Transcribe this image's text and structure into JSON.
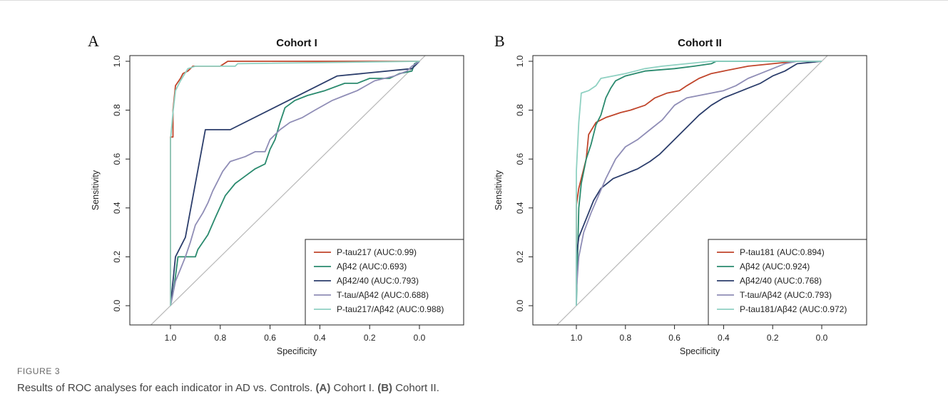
{
  "figure": {
    "label": "FIGURE 3",
    "caption_intro": "Results of ROC analyses for each indicator in AD vs. Controls. ",
    "caption_a_tag": "(A)",
    "caption_a_text": " Cohort I. ",
    "caption_b_tag": "(B)",
    "caption_b_text": " Cohort II."
  },
  "chart_data": [
    {
      "type": "line",
      "panel": "A",
      "title": "Cohort I",
      "xlabel": "Specificity",
      "ylabel": "Sensitivity",
      "x_reversed": true,
      "xlim": [
        1.0,
        0.0
      ],
      "ylim": [
        0.0,
        1.0
      ],
      "xticks": [
        "1.0",
        "0.8",
        "0.6",
        "0.4",
        "0.2",
        "0.0"
      ],
      "yticks": [
        "0.0",
        "0.2",
        "0.4",
        "0.6",
        "0.8",
        "1.0"
      ],
      "legend_position": "bottom-right",
      "reference_line": true,
      "series": [
        {
          "name": "P-tau217 (AUC:0.99)",
          "color": "#c0452b",
          "points": [
            [
              1,
              0
            ],
            [
              1,
              0.69
            ],
            [
              0.99,
              0.69
            ],
            [
              0.99,
              0.8
            ],
            [
              0.98,
              0.9
            ],
            [
              0.96,
              0.93
            ],
            [
              0.95,
              0.95
            ],
            [
              0.93,
              0.96
            ],
            [
              0.91,
              0.98
            ],
            [
              0.85,
              0.98
            ],
            [
              0.8,
              0.98
            ],
            [
              0.77,
              1.0
            ],
            [
              0.0,
              1.0
            ]
          ]
        },
        {
          "name": "Aβ42 (AUC:0.693)",
          "color": "#2a8a6e",
          "points": [
            [
              1,
              0
            ],
            [
              0.99,
              0.05
            ],
            [
              0.98,
              0.12
            ],
            [
              0.97,
              0.2
            ],
            [
              0.93,
              0.2
            ],
            [
              0.9,
              0.2
            ],
            [
              0.89,
              0.23
            ],
            [
              0.85,
              0.29
            ],
            [
              0.82,
              0.36
            ],
            [
              0.78,
              0.45
            ],
            [
              0.74,
              0.5
            ],
            [
              0.7,
              0.53
            ],
            [
              0.66,
              0.56
            ],
            [
              0.62,
              0.58
            ],
            [
              0.6,
              0.64
            ],
            [
              0.58,
              0.68
            ],
            [
              0.56,
              0.75
            ],
            [
              0.54,
              0.81
            ],
            [
              0.5,
              0.84
            ],
            [
              0.45,
              0.86
            ],
            [
              0.38,
              0.88
            ],
            [
              0.3,
              0.91
            ],
            [
              0.25,
              0.91
            ],
            [
              0.2,
              0.93
            ],
            [
              0.12,
              0.93
            ],
            [
              0.08,
              0.95
            ],
            [
              0.03,
              0.96
            ],
            [
              0.02,
              0.99
            ],
            [
              0,
              1
            ]
          ]
        },
        {
          "name": "Aβ42/40 (AUC:0.793)",
          "color": "#2b3d6b",
          "points": [
            [
              1,
              0
            ],
            [
              0.98,
              0.2
            ],
            [
              0.94,
              0.28
            ],
            [
              0.86,
              0.72
            ],
            [
              0.76,
              0.72
            ],
            [
              0.33,
              0.94
            ],
            [
              0.03,
              0.97
            ],
            [
              0,
              1
            ]
          ]
        },
        {
          "name": "T-tau/Aβ42 (AUC:0.688)",
          "color": "#8f8db6",
          "points": [
            [
              1,
              0
            ],
            [
              0.99,
              0.05
            ],
            [
              0.98,
              0.1
            ],
            [
              0.96,
              0.15
            ],
            [
              0.94,
              0.2
            ],
            [
              0.92,
              0.26
            ],
            [
              0.9,
              0.33
            ],
            [
              0.87,
              0.38
            ],
            [
              0.85,
              0.42
            ],
            [
              0.83,
              0.47
            ],
            [
              0.81,
              0.51
            ],
            [
              0.79,
              0.55
            ],
            [
              0.76,
              0.59
            ],
            [
              0.7,
              0.61
            ],
            [
              0.66,
              0.63
            ],
            [
              0.62,
              0.63
            ],
            [
              0.6,
              0.68
            ],
            [
              0.56,
              0.72
            ],
            [
              0.52,
              0.75
            ],
            [
              0.47,
              0.77
            ],
            [
              0.42,
              0.8
            ],
            [
              0.35,
              0.84
            ],
            [
              0.3,
              0.86
            ],
            [
              0.25,
              0.88
            ],
            [
              0.18,
              0.92
            ],
            [
              0.1,
              0.94
            ],
            [
              0.05,
              0.96
            ],
            [
              0.03,
              0.98
            ],
            [
              0,
              1
            ]
          ]
        },
        {
          "name": "P-tau217/Aβ42 (AUC:0.988)",
          "color": "#8fd1c2",
          "points": [
            [
              1,
              0
            ],
            [
              1,
              0.68
            ],
            [
              0.99,
              0.79
            ],
            [
              0.98,
              0.88
            ],
            [
              0.96,
              0.92
            ],
            [
              0.93,
              0.97
            ],
            [
              0.9,
              0.98
            ],
            [
              0.74,
              0.98
            ],
            [
              0.73,
              0.99
            ],
            [
              0.0,
              1.0
            ]
          ]
        }
      ]
    },
    {
      "type": "line",
      "panel": "B",
      "title": "Cohort II",
      "xlabel": "Specificity",
      "ylabel": "Sensitivity",
      "x_reversed": true,
      "xlim": [
        1.0,
        0.0
      ],
      "ylim": [
        0.0,
        1.0
      ],
      "xticks": [
        "1.0",
        "0.8",
        "0.6",
        "0.4",
        "0.2",
        "0.0"
      ],
      "yticks": [
        "0.0",
        "0.2",
        "0.4",
        "0.6",
        "0.8",
        "1.0"
      ],
      "legend_position": "bottom-right",
      "reference_line": true,
      "series": [
        {
          "name": "P-tau181 (AUC:0.894)",
          "color": "#c0452b",
          "points": [
            [
              1,
              0
            ],
            [
              1,
              0.41
            ],
            [
              0.99,
              0.48
            ],
            [
              0.98,
              0.52
            ],
            [
              0.96,
              0.6
            ],
            [
              0.95,
              0.7
            ],
            [
              0.92,
              0.75
            ],
            [
              0.88,
              0.77
            ],
            [
              0.85,
              0.78
            ],
            [
              0.82,
              0.79
            ],
            [
              0.78,
              0.8
            ],
            [
              0.72,
              0.82
            ],
            [
              0.68,
              0.85
            ],
            [
              0.63,
              0.87
            ],
            [
              0.58,
              0.88
            ],
            [
              0.55,
              0.9
            ],
            [
              0.5,
              0.93
            ],
            [
              0.45,
              0.95
            ],
            [
              0.4,
              0.96
            ],
            [
              0.3,
              0.98
            ],
            [
              0.2,
              0.99
            ],
            [
              0.1,
              1.0
            ],
            [
              0,
              1
            ]
          ]
        },
        {
          "name": "Aβ42 (AUC:0.924)",
          "color": "#2a8a6e",
          "points": [
            [
              1,
              0
            ],
            [
              0.99,
              0.4
            ],
            [
              0.98,
              0.5
            ],
            [
              0.96,
              0.6
            ],
            [
              0.94,
              0.66
            ],
            [
              0.92,
              0.74
            ],
            [
              0.9,
              0.78
            ],
            [
              0.88,
              0.85
            ],
            [
              0.86,
              0.89
            ],
            [
              0.84,
              0.92
            ],
            [
              0.8,
              0.94
            ],
            [
              0.72,
              0.96
            ],
            [
              0.6,
              0.97
            ],
            [
              0.52,
              0.98
            ],
            [
              0.45,
              0.99
            ],
            [
              0.43,
              1.0
            ],
            [
              0,
              1
            ]
          ]
        },
        {
          "name": "Aβ42/40 (AUC:0.768)",
          "color": "#2b3d6b",
          "points": [
            [
              1,
              0
            ],
            [
              1,
              0.2
            ],
            [
              0.99,
              0.28
            ],
            [
              0.97,
              0.33
            ],
            [
              0.95,
              0.38
            ],
            [
              0.93,
              0.43
            ],
            [
              0.9,
              0.48
            ],
            [
              0.85,
              0.52
            ],
            [
              0.8,
              0.54
            ],
            [
              0.75,
              0.56
            ],
            [
              0.7,
              0.59
            ],
            [
              0.66,
              0.62
            ],
            [
              0.62,
              0.66
            ],
            [
              0.58,
              0.7
            ],
            [
              0.54,
              0.74
            ],
            [
              0.5,
              0.78
            ],
            [
              0.45,
              0.82
            ],
            [
              0.4,
              0.85
            ],
            [
              0.35,
              0.87
            ],
            [
              0.3,
              0.89
            ],
            [
              0.25,
              0.91
            ],
            [
              0.2,
              0.94
            ],
            [
              0.15,
              0.96
            ],
            [
              0.1,
              0.99
            ],
            [
              0,
              1
            ]
          ]
        },
        {
          "name": "T-tau/Aβ42 (AUC:0.793)",
          "color": "#8f8db6",
          "points": [
            [
              1,
              0
            ],
            [
              1,
              0.06
            ],
            [
              0.99,
              0.2
            ],
            [
              0.97,
              0.3
            ],
            [
              0.94,
              0.38
            ],
            [
              0.91,
              0.45
            ],
            [
              0.88,
              0.52
            ],
            [
              0.84,
              0.6
            ],
            [
              0.8,
              0.65
            ],
            [
              0.75,
              0.68
            ],
            [
              0.7,
              0.72
            ],
            [
              0.65,
              0.76
            ],
            [
              0.6,
              0.82
            ],
            [
              0.55,
              0.85
            ],
            [
              0.5,
              0.86
            ],
            [
              0.45,
              0.87
            ],
            [
              0.4,
              0.88
            ],
            [
              0.35,
              0.9
            ],
            [
              0.3,
              0.93
            ],
            [
              0.25,
              0.95
            ],
            [
              0.2,
              0.97
            ],
            [
              0.15,
              0.99
            ],
            [
              0.1,
              1.0
            ],
            [
              0,
              1
            ]
          ]
        },
        {
          "name": "P-tau181/Aβ42 (AUC:0.972)",
          "color": "#8fd1c2",
          "points": [
            [
              1,
              0
            ],
            [
              1,
              0.55
            ],
            [
              0.99,
              0.75
            ],
            [
              0.98,
              0.87
            ],
            [
              0.95,
              0.88
            ],
            [
              0.92,
              0.9
            ],
            [
              0.9,
              0.93
            ],
            [
              0.85,
              0.94
            ],
            [
              0.8,
              0.95
            ],
            [
              0.72,
              0.97
            ],
            [
              0.65,
              0.98
            ],
            [
              0.55,
              0.99
            ],
            [
              0.45,
              1.0
            ],
            [
              0,
              1
            ]
          ]
        }
      ]
    }
  ]
}
